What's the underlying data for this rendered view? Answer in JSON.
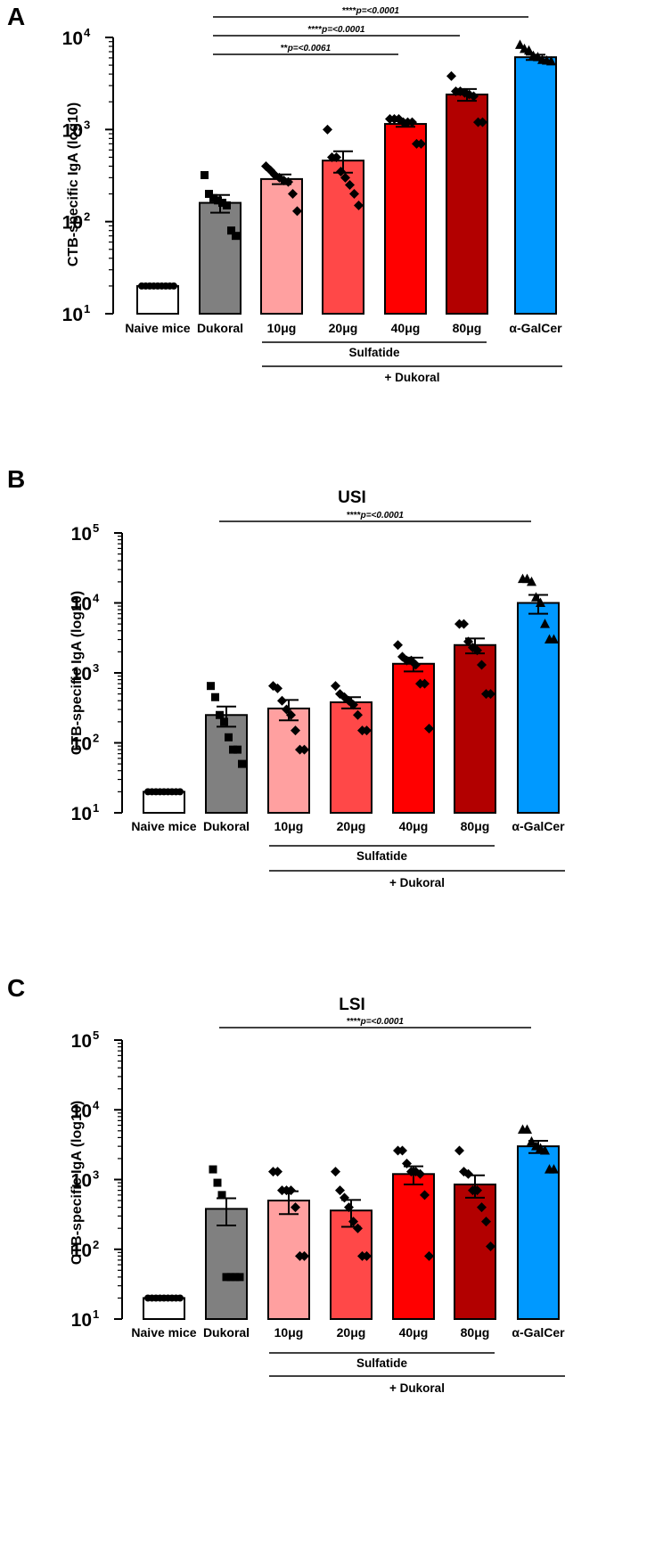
{
  "chart_data": [
    {
      "panel": "A",
      "type": "bar",
      "title": "",
      "ylabel": "CTB-specific IgA (log10)",
      "yscale": "log",
      "ylim": [
        10,
        10000
      ],
      "yticks": [
        {
          "base": "10",
          "exp": "1"
        },
        {
          "base": "10",
          "exp": "2"
        },
        {
          "base": "10",
          "exp": "3"
        },
        {
          "base": "10",
          "exp": "4"
        }
      ],
      "categories": [
        "Naive mice",
        "Dukoral",
        "10μg",
        "20μg",
        "40μg",
        "80μg",
        "α-GalCer"
      ],
      "colors": [
        "#ffffff",
        "#808080",
        "#ffa0a0",
        "#ff4848",
        "#ff0000",
        "#b20000",
        "#0099ff"
      ],
      "markers": [
        "circle",
        "square",
        "diamond",
        "diamond",
        "diamond",
        "diamond",
        "triangle"
      ],
      "means": [
        20,
        160,
        290,
        460,
        1150,
        2400,
        6100
      ],
      "errors": [
        0,
        35,
        35,
        120,
        80,
        350,
        400
      ],
      "points": [
        [
          20,
          20,
          20,
          20,
          20,
          20,
          20,
          20,
          20
        ],
        [
          320,
          200,
          180,
          170,
          160,
          150,
          80,
          70
        ],
        [
          400,
          360,
          320,
          300,
          280,
          270,
          200,
          130
        ],
        [
          1000,
          500,
          500,
          350,
          300,
          250,
          200,
          150
        ],
        [
          1300,
          1300,
          1300,
          1200,
          1200,
          1200,
          700,
          700
        ],
        [
          3800,
          2600,
          2600,
          2500,
          2400,
          2300,
          1200,
          1200
        ],
        [
          8300,
          7500,
          7200,
          6300,
          6100,
          5700,
          5600,
          5500
        ]
      ],
      "group_labels": {
        "sulfatide": "Sulfatide",
        "plus_dukoral": "+ Dukoral"
      },
      "significance": [
        {
          "from": 1,
          "to": 6,
          "stars": "****",
          "label": "p=<0.0001"
        },
        {
          "from": 1,
          "to": 5,
          "stars": "****",
          "label": "p=<0.0001"
        },
        {
          "from": 1,
          "to": 4,
          "stars": "**",
          "label": "p=<0.0061"
        }
      ]
    },
    {
      "panel": "B",
      "type": "bar",
      "title": "USI",
      "ylabel": "CTB-specific IgA (log10)",
      "yscale": "log",
      "ylim": [
        10,
        100000
      ],
      "yticks": [
        {
          "base": "10",
          "exp": "1"
        },
        {
          "base": "10",
          "exp": "2"
        },
        {
          "base": "10",
          "exp": "3"
        },
        {
          "base": "10",
          "exp": "4"
        },
        {
          "base": "10",
          "exp": "5"
        }
      ],
      "categories": [
        "Naive mice",
        "Dukoral",
        "10μg",
        "20μg",
        "40μg",
        "80μg",
        "α-GalCer"
      ],
      "colors": [
        "#ffffff",
        "#808080",
        "#ffa0a0",
        "#ff4848",
        "#ff0000",
        "#b20000",
        "#0099ff"
      ],
      "markers": [
        "circle",
        "square",
        "diamond",
        "diamond",
        "diamond",
        "diamond",
        "triangle"
      ],
      "means": [
        20,
        250,
        310,
        380,
        1350,
        2500,
        10000
      ],
      "errors": [
        0,
        80,
        100,
        70,
        300,
        600,
        3000
      ],
      "points": [
        [
          20,
          20,
          20,
          20,
          20,
          20,
          20,
          20,
          20
        ],
        [
          650,
          450,
          250,
          200,
          120,
          80,
          80,
          50
        ],
        [
          650,
          600,
          400,
          300,
          250,
          150,
          80,
          80
        ],
        [
          650,
          500,
          450,
          400,
          350,
          250,
          150,
          150
        ],
        [
          2500,
          1700,
          1500,
          1500,
          1300,
          700,
          700,
          160
        ],
        [
          5000,
          5000,
          2800,
          2300,
          2100,
          1300,
          500,
          500
        ],
        [
          22000,
          22000,
          20000,
          12000,
          10000,
          5000,
          3000,
          3000
        ]
      ],
      "group_labels": {
        "sulfatide": "Sulfatide",
        "plus_dukoral": "+ Dukoral"
      },
      "significance": [
        {
          "from": 1,
          "to": 6,
          "stars": "****",
          "label": "p=<0.0001"
        }
      ]
    },
    {
      "panel": "C",
      "type": "bar",
      "title": "LSI",
      "ylabel": "CTB-specific IgA (log10)",
      "yscale": "log",
      "ylim": [
        10,
        100000
      ],
      "yticks": [
        {
          "base": "10",
          "exp": "1"
        },
        {
          "base": "10",
          "exp": "2"
        },
        {
          "base": "10",
          "exp": "3"
        },
        {
          "base": "10",
          "exp": "4"
        },
        {
          "base": "10",
          "exp": "5"
        }
      ],
      "categories": [
        "Naive mice",
        "Dukoral",
        "10μg",
        "20μg",
        "40μg",
        "80μg",
        "α-GalCer"
      ],
      "colors": [
        "#ffffff",
        "#808080",
        "#ffa0a0",
        "#ff4848",
        "#ff0000",
        "#b20000",
        "#0099ff"
      ],
      "markers": [
        "circle",
        "square",
        "diamond",
        "diamond",
        "diamond",
        "diamond",
        "triangle"
      ],
      "means": [
        20,
        380,
        500,
        360,
        1200,
        850,
        3000
      ],
      "errors": [
        0,
        160,
        180,
        150,
        350,
        300,
        600
      ],
      "points": [
        [
          20,
          20,
          20,
          20,
          20,
          20,
          20,
          20,
          20
        ],
        [
          1400,
          900,
          600,
          40,
          40,
          40,
          40
        ],
        [
          1300,
          1300,
          700,
          700,
          700,
          400,
          80,
          80
        ],
        [
          1300,
          700,
          550,
          400,
          250,
          200,
          80,
          80
        ],
        [
          2600,
          2600,
          1700,
          1300,
          1300,
          1200,
          600,
          80
        ],
        [
          2600,
          1300,
          1200,
          700,
          700,
          400,
          250,
          110
        ],
        [
          5200,
          5200,
          3500,
          3000,
          2800,
          2600,
          1400,
          1400
        ]
      ],
      "group_labels": {
        "sulfatide": "Sulfatide",
        "plus_dukoral": "+ Dukoral"
      },
      "significance": [
        {
          "from": 1,
          "to": 6,
          "stars": "****",
          "label": "p=<0.0001"
        }
      ]
    }
  ]
}
